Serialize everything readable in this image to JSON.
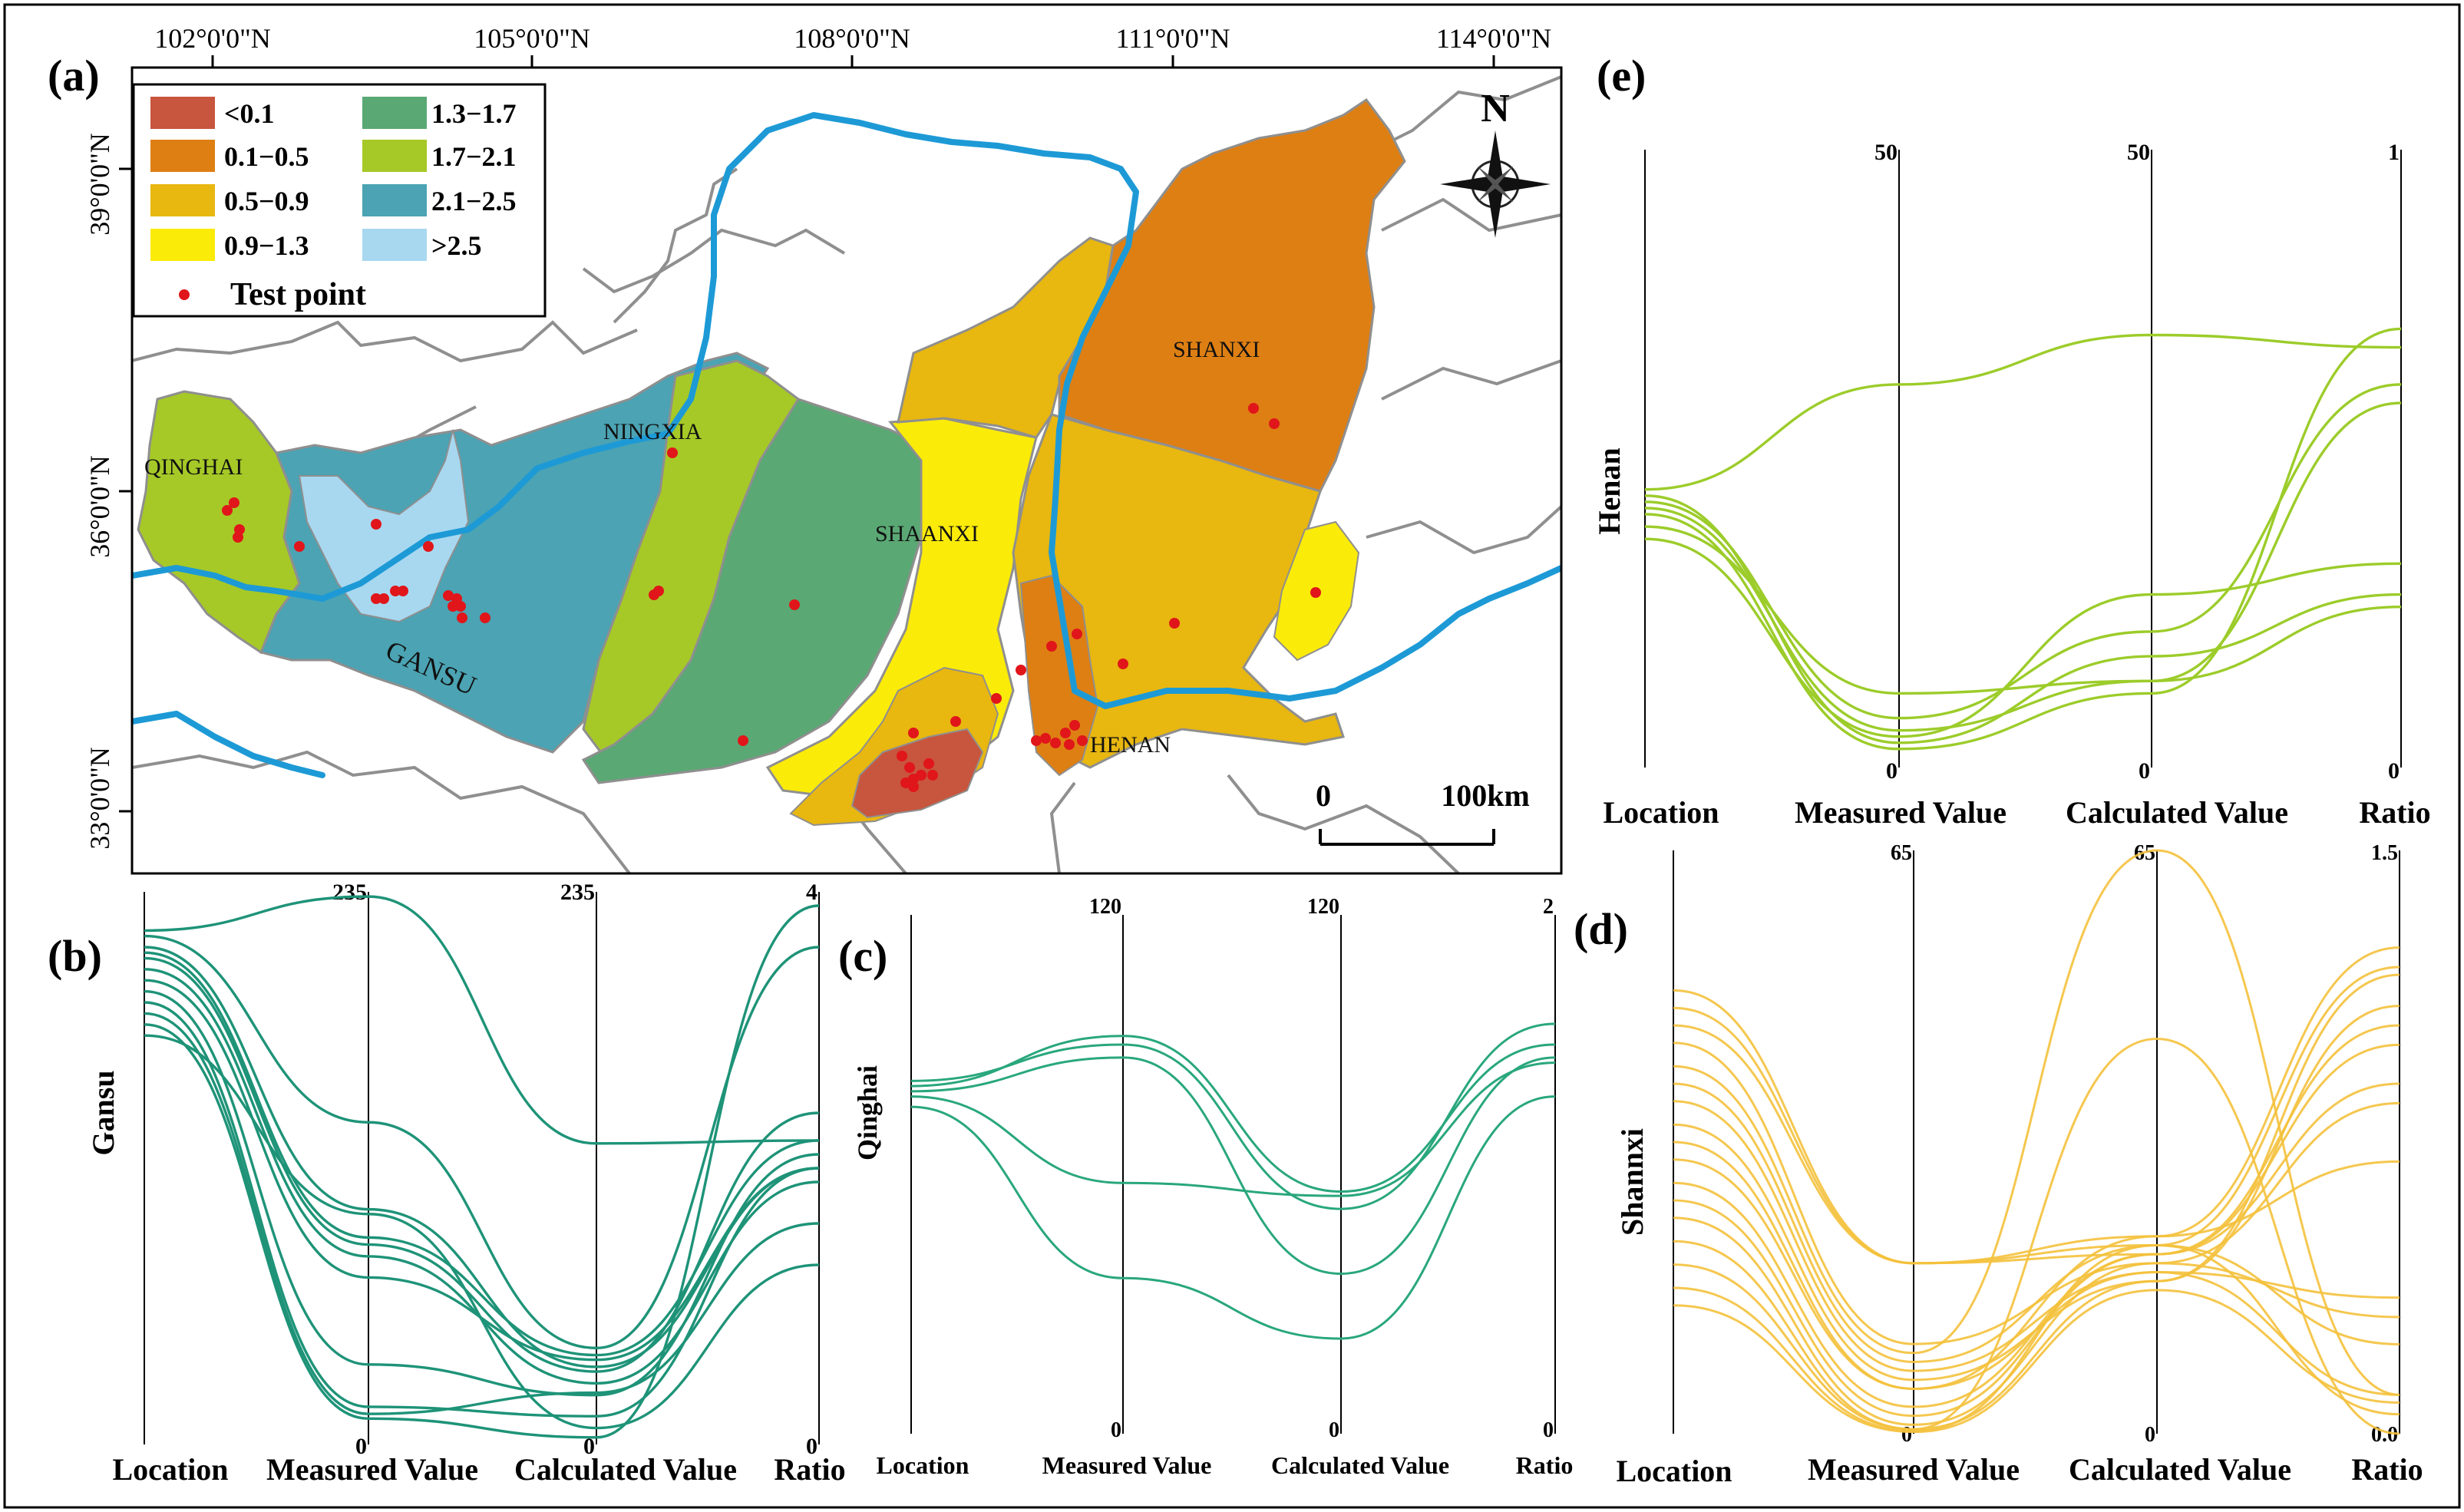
{
  "figure": {
    "panel_labels": {
      "a": "(a)",
      "b": "(b)",
      "c": "(c)",
      "d": "(d)",
      "e": "(e)"
    }
  },
  "map": {
    "lon_labels": [
      "102°0'0\"N",
      "105°0'0\"N",
      "108°0'0\"N",
      "111°0'0\"N",
      "114°0'0\"N"
    ],
    "lat_labels": [
      "39°0'0\"N",
      "36°0'0\"N",
      "33°0'0\"N"
    ],
    "north_label": "N",
    "scale_zero": "0",
    "scale_label": "100km",
    "region_labels": [
      "QINGHAI",
      "GANSU",
      "NINGXIA",
      "SHAANXI",
      "SHANXI",
      "HENAN"
    ],
    "legend": [
      {
        "label": "<0.1",
        "color": "#c8553d"
      },
      {
        "label": "1.3−1.7",
        "color": "#5aa874"
      },
      {
        "label": "0.1−0.5",
        "color": "#de7f13"
      },
      {
        "label": "1.7−2.1",
        "color": "#a6c927"
      },
      {
        "label": "0.5−0.9",
        "color": "#e8b710"
      },
      {
        "label": "2.1−2.5",
        "color": "#4ba3b3"
      },
      {
        "label": "0.9−1.3",
        "color": "#fbeb09"
      },
      {
        "label": ">2.5",
        "color": "#a8d8f0"
      }
    ],
    "test_point_label": "Test point",
    "test_point_color": "#e0161a",
    "river_color": "#1d9ad6"
  },
  "chart_data": [
    {
      "type": "parallel-coordinates",
      "panel": "(b)",
      "region": "Gansu",
      "axes": [
        "Location",
        "Measured Value",
        "Calculated Value",
        "Ratio"
      ],
      "axis_max": [
        "",
        "235",
        "235",
        "4"
      ],
      "axis_min": [
        "",
        "0",
        "0",
        "0"
      ],
      "axis_limits": [
        null,
        [
          0,
          235
        ],
        [
          0,
          235
        ],
        [
          0,
          4
        ]
      ],
      "color": "#1e9378",
      "location_range": [
        0.74,
        0.93
      ],
      "series": [
        [
          0.93,
          233,
          128,
          2.2
        ],
        [
          0.92,
          137,
          41,
          3.6
        ],
        [
          0.9,
          100,
          33,
          2.0
        ],
        [
          0.89,
          88,
          38,
          2.2
        ],
        [
          0.88,
          85,
          31,
          2.4
        ],
        [
          0.86,
          80,
          26,
          1.9
        ],
        [
          0.84,
          71,
          36,
          2.0
        ],
        [
          0.82,
          34,
          21,
          2.1
        ],
        [
          0.8,
          16,
          12,
          2.0
        ],
        [
          0.78,
          13,
          22,
          1.6
        ],
        [
          0.76,
          11,
          3,
          3.9
        ],
        [
          0.74,
          98,
          7,
          1.3
        ]
      ]
    },
    {
      "type": "parallel-coordinates",
      "panel": "(c)",
      "region": "Qinghai",
      "axes": [
        "Location",
        "Measured Value",
        "Calculated Value",
        "Ratio"
      ],
      "axis_max": [
        "",
        "120",
        "120",
        "2"
      ],
      "axis_min": [
        "",
        "0",
        "0",
        "0"
      ],
      "axis_limits": [
        null,
        [
          0,
          120
        ],
        [
          0,
          120
        ],
        [
          0,
          2
        ]
      ],
      "color": "#29a77c",
      "location_range": [
        0.63,
        0.68
      ],
      "series": [
        [
          0.68,
          90,
          52,
          1.58
        ],
        [
          0.67,
          92,
          56,
          1.5
        ],
        [
          0.66,
          87,
          37,
          1.45
        ],
        [
          0.65,
          58,
          55,
          1.43
        ],
        [
          0.63,
          36,
          22,
          1.3
        ]
      ]
    },
    {
      "type": "parallel-coordinates",
      "panel": "(d)",
      "region": "Shannxi",
      "axes": [
        "Location",
        "Measured Value",
        "Calculated Value",
        "Ratio"
      ],
      "axis_max": [
        "",
        "65",
        "65",
        "1.5"
      ],
      "axis_min": [
        "",
        "0",
        "0",
        "0.0"
      ],
      "axis_limits": [
        null,
        [
          0,
          65
        ],
        [
          0,
          65
        ],
        [
          0,
          1.5
        ]
      ],
      "color": "#f4c13c",
      "location_range": [
        0.22,
        0.76
      ],
      "series": [
        [
          0.76,
          19,
          20,
          1.0
        ],
        [
          0.73,
          19,
          21,
          0.05
        ],
        [
          0.7,
          19,
          22,
          1.25
        ],
        [
          0.67,
          10,
          19,
          0.85
        ],
        [
          0.63,
          9,
          65,
          0.1
        ],
        [
          0.6,
          8,
          21,
          1.2
        ],
        [
          0.57,
          7,
          18,
          0.1
        ],
        [
          0.53,
          6,
          17,
          1.18
        ],
        [
          0.5,
          5,
          22,
          0.7
        ],
        [
          0.47,
          5,
          18,
          0.35
        ],
        [
          0.43,
          3,
          20,
          1.05
        ],
        [
          0.4,
          2,
          20,
          0.9
        ],
        [
          0.37,
          1,
          19,
          0.3
        ],
        [
          0.33,
          0.5,
          44,
          0.0
        ],
        [
          0.29,
          0.5,
          17,
          1.1
        ],
        [
          0.25,
          0.3,
          21,
          0.23
        ],
        [
          0.22,
          0.2,
          16,
          0.08
        ]
      ]
    },
    {
      "type": "parallel-coordinates",
      "panel": "(e)",
      "region": "Henan",
      "axes": [
        "Location",
        "Measured Value",
        "Calculated Value",
        "Ratio"
      ],
      "axis_max": [
        "",
        "50",
        "50",
        "1"
      ],
      "axis_min": [
        "",
        "0",
        "0",
        "0"
      ],
      "axis_limits": [
        null,
        [
          0,
          50
        ],
        [
          0,
          50
        ],
        [
          0,
          1
        ]
      ],
      "color": "#9ccc2a",
      "location_range": [
        0.37,
        0.45
      ],
      "series": [
        [
          0.45,
          31,
          35,
          0.68
        ],
        [
          0.44,
          2,
          9,
          0.28
        ],
        [
          0.43,
          4,
          11,
          0.62
        ],
        [
          0.42,
          3,
          7,
          0.59
        ],
        [
          0.41,
          1.5,
          6,
          0.71
        ],
        [
          0.39,
          6,
          7,
          0.26
        ],
        [
          0.37,
          2.5,
          14,
          0.33
        ]
      ]
    }
  ]
}
